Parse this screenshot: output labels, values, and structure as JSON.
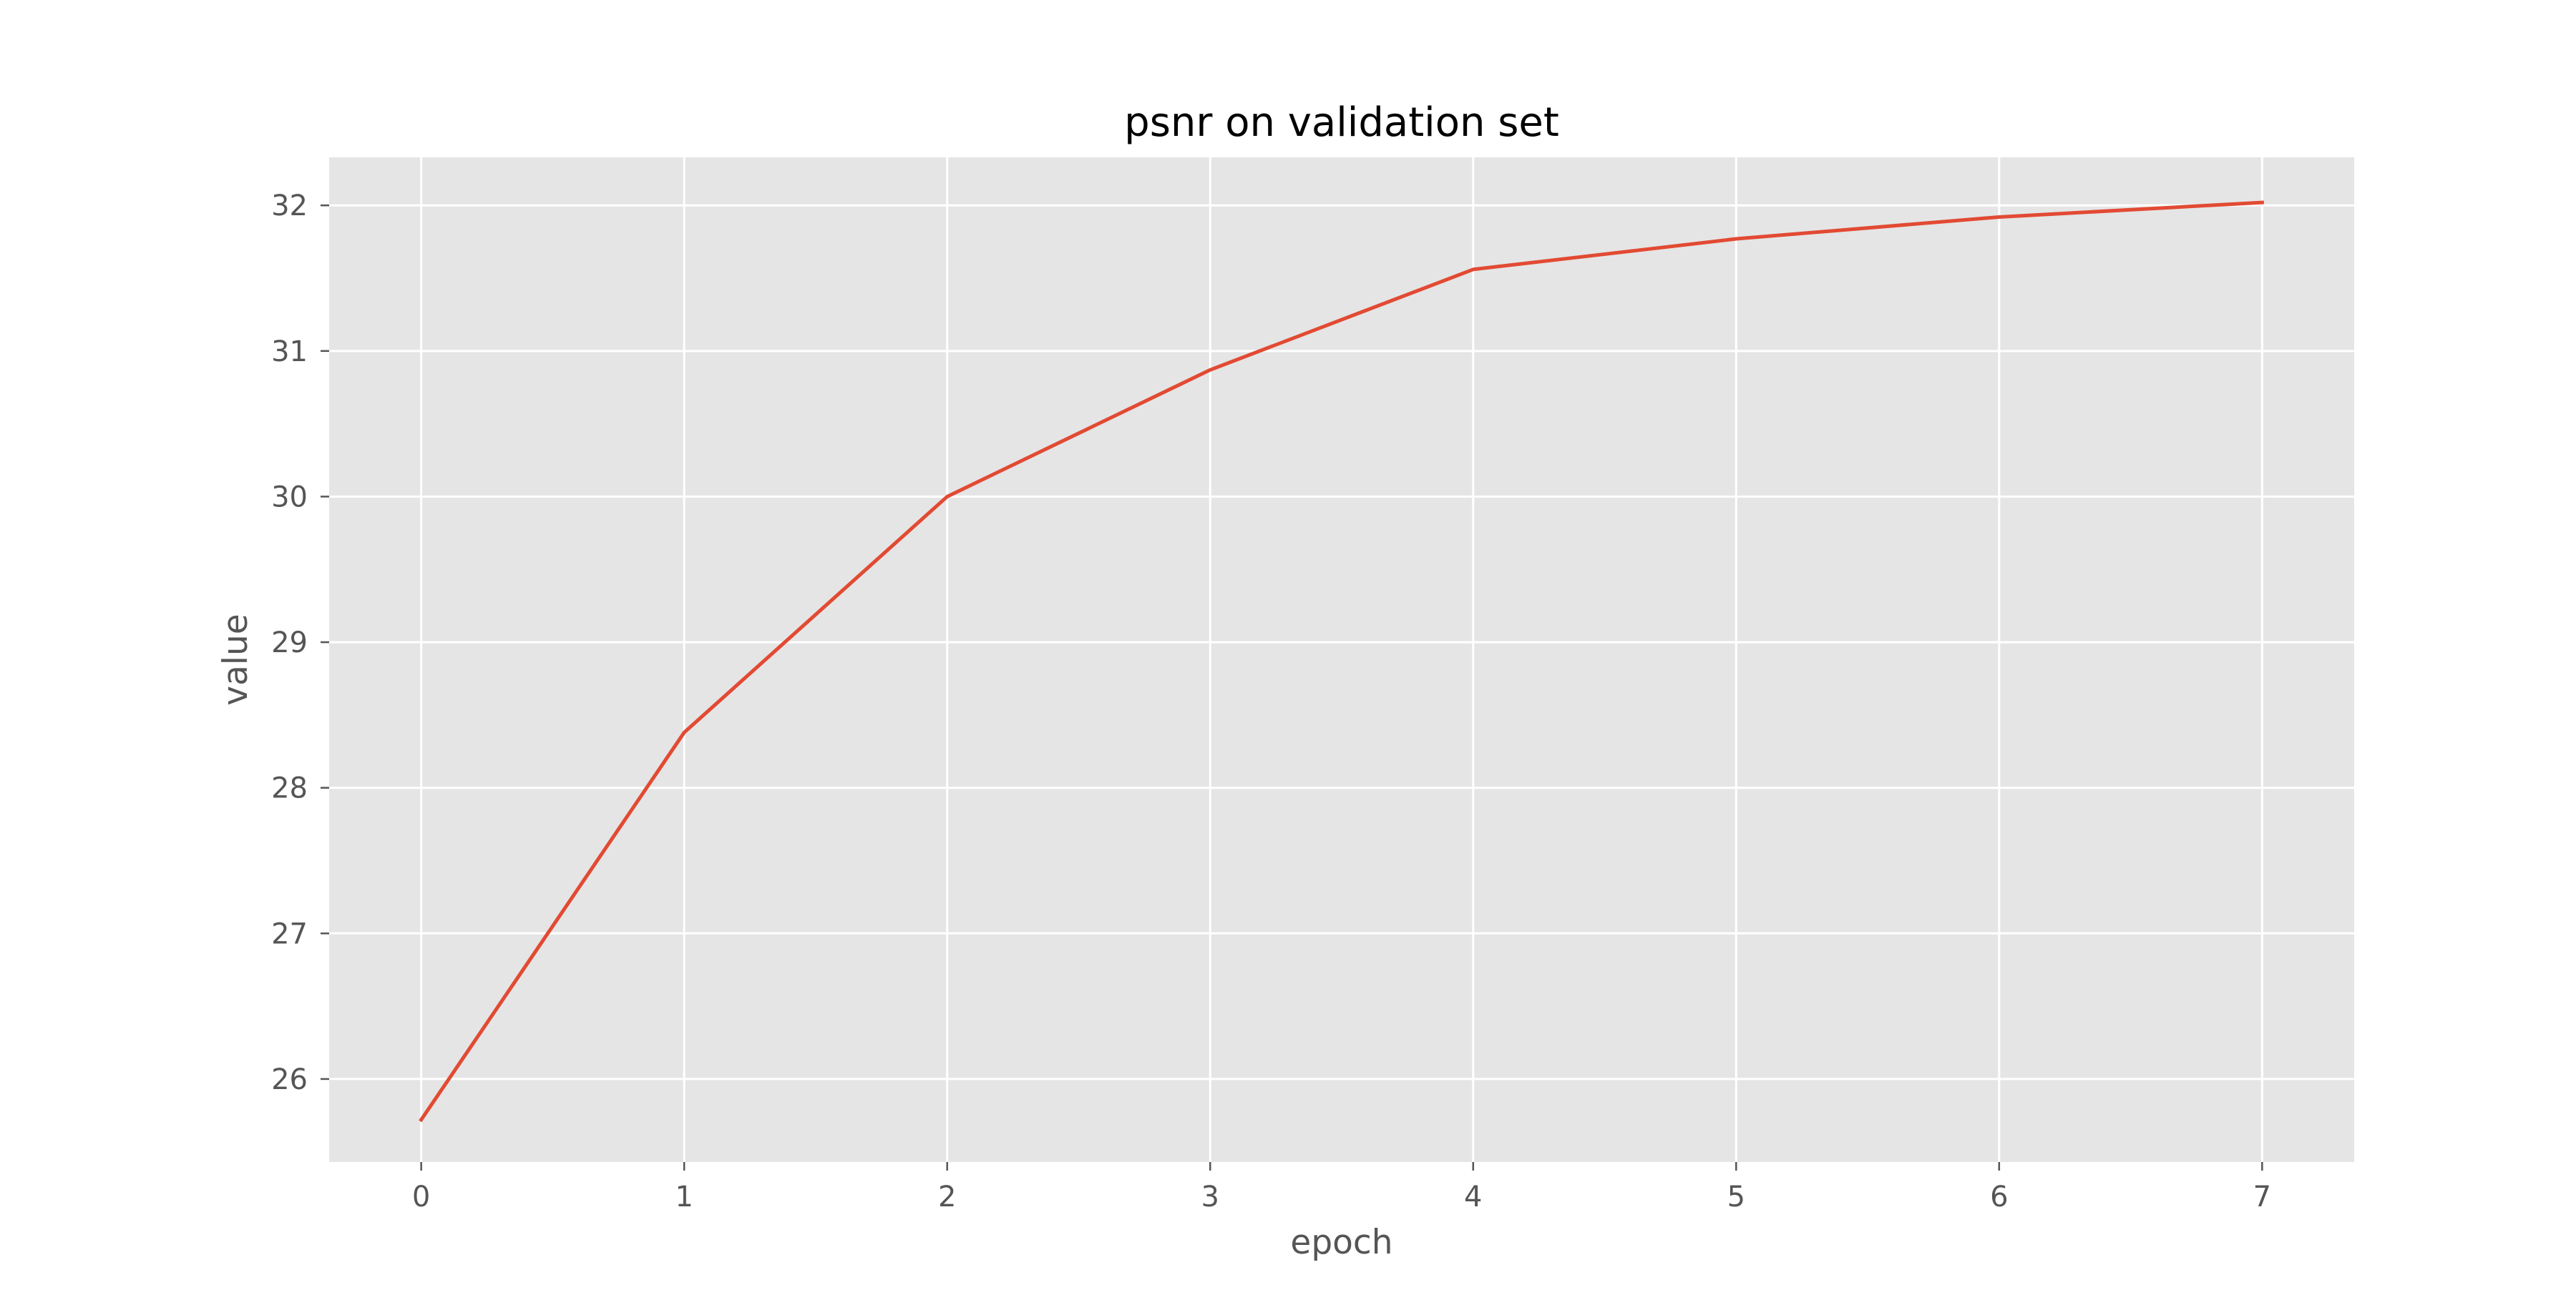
{
  "chart_data": {
    "type": "line",
    "title": "psnr on validation set",
    "xlabel": "epoch",
    "ylabel": "value",
    "x": [
      0,
      1,
      2,
      3,
      4,
      5,
      6,
      7
    ],
    "series": [
      {
        "values": [
          25.72,
          28.38,
          30.0,
          30.87,
          31.56,
          31.77,
          31.92,
          32.02
        ],
        "color": "#E24A33"
      }
    ],
    "xticks": [
      "0",
      "1",
      "2",
      "3",
      "4",
      "5",
      "6",
      "7"
    ],
    "yticks": [
      "26",
      "27",
      "28",
      "29",
      "30",
      "31",
      "32"
    ],
    "xlim": [
      -0.35,
      7.35
    ],
    "ylim": [
      25.43,
      32.33
    ],
    "grid": true,
    "style": {
      "plot_background": "#E5E5E5",
      "grid_color": "#FFFFFF",
      "tick_color": "#555555"
    }
  }
}
